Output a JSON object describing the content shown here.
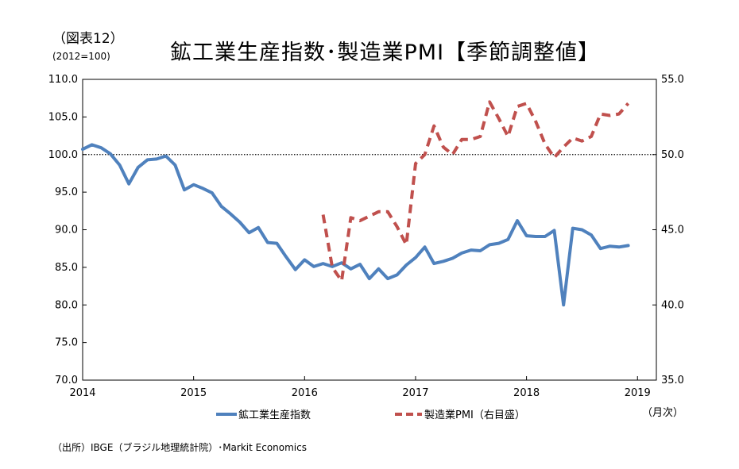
{
  "header": {
    "figure_label": "（図表12）",
    "base_note": "(2012=100)",
    "title": "鉱工業生産指数･製造業PMI【季節調整値】"
  },
  "unit_label": "（月次）",
  "source": "（出所）IBGE（ブラジル地理統計院）･Markit Economics",
  "chart_data": {
    "type": "line",
    "title": "鉱工業生産指数･製造業PMI【季節調整値】",
    "x_ticks": [
      2014,
      2015,
      2016,
      2017,
      2018,
      2019
    ],
    "xlim": [
      2014,
      2019.17
    ],
    "y_left": {
      "lim": [
        70,
        110
      ],
      "ticks": [
        "70.0",
        "75.0",
        "80.0",
        "85.0",
        "90.0",
        "95.0",
        "100.0",
        "105.0",
        "110.0"
      ]
    },
    "y_right": {
      "lim": [
        35,
        55
      ],
      "ticks": [
        "35.0",
        "40.0",
        "45.0",
        "50.0",
        "55.0"
      ]
    },
    "reference_line": {
      "axis": "left",
      "value": 100,
      "style": "dotted"
    },
    "series": [
      {
        "name": "鉱工業生産指数",
        "axis": "left",
        "color": "#4F81BD",
        "style": "solid",
        "start": "2014-01",
        "values": [
          100.7,
          101.3,
          100.9,
          100.1,
          98.6,
          96.1,
          98.3,
          99.3,
          99.4,
          99.8,
          98.6,
          95.3,
          96.0,
          95.5,
          94.9,
          93.1,
          92.1,
          91.0,
          89.6,
          90.3,
          88.3,
          88.2,
          86.4,
          84.7,
          86.0,
          85.1,
          85.5,
          85.1,
          85.6,
          84.8,
          85.4,
          83.5,
          84.8,
          83.5,
          84.0,
          85.3,
          86.3,
          87.7,
          85.5,
          85.8,
          86.2,
          86.9,
          87.3,
          87.2,
          88.0,
          88.2,
          88.7,
          91.2,
          89.2,
          89.1,
          89.1,
          89.9,
          80.0,
          90.2,
          90.0,
          89.3,
          87.5,
          87.8,
          87.7,
          87.9
        ]
      },
      {
        "name": "製造業PMI（右目盛）",
        "axis": "right",
        "color": "#C0504D",
        "style": "dashed",
        "start": "2016-03",
        "values": [
          46.0,
          42.5,
          41.6,
          45.8,
          45.6,
          45.9,
          46.2,
          46.2,
          45.2,
          44.0,
          49.4,
          50.0,
          51.9,
          50.5,
          50.0,
          51.0,
          51.0,
          51.2,
          53.5,
          52.4,
          51.2,
          53.2,
          53.4,
          52.2,
          50.7,
          49.8,
          50.5,
          51.1,
          50.9,
          51.2,
          52.7,
          52.6,
          52.7,
          53.4
        ]
      }
    ],
    "legend_position": "bottom"
  }
}
